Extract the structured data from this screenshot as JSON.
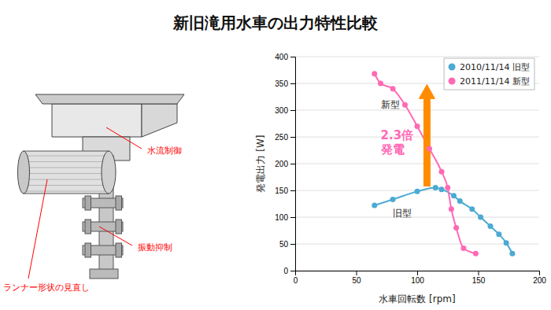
{
  "chart_data": {
    "type": "scatter",
    "title": "新旧滝用水車の出力特性比較",
    "xlabel": "水車回転数 [rpm]",
    "ylabel": "発電出力 [W]",
    "xlim": [
      0,
      200
    ],
    "ylim": [
      0,
      400
    ],
    "xticks": [
      0,
      50,
      100,
      150,
      200
    ],
    "yticks": [
      0,
      50,
      100,
      150,
      200,
      250,
      300,
      350,
      400
    ],
    "grid": "y",
    "legend": "upper right",
    "series": [
      {
        "name": "2010/11/14 旧型",
        "color": "#4BAAD3",
        "marker": "circle",
        "line_style": "solid",
        "x": [
          65,
          80,
          100,
          115,
          120,
          130,
          135,
          145,
          152,
          160,
          167,
          173,
          178
        ],
        "values": [
          122,
          133,
          148,
          155,
          152,
          140,
          130,
          115,
          100,
          83,
          68,
          52,
          32
        ]
      },
      {
        "name": "2011/11/14 新型",
        "color": "#FF69B4",
        "marker": "circle",
        "line_style": "solid",
        "x": [
          65,
          70,
          80,
          90,
          100,
          110,
          120,
          125,
          128,
          132,
          138,
          148
        ],
        "values": [
          368,
          350,
          340,
          310,
          270,
          228,
          185,
          155,
          115,
          80,
          42,
          32
        ]
      }
    ],
    "annotations": [
      {
        "text": "新型",
        "x": 70,
        "y": 310
      },
      {
        "text": "旧型",
        "x": 80,
        "y": 108
      },
      {
        "text": "2.3倍\n発電",
        "x": 70,
        "y": 240,
        "color": "#FF69B4"
      }
    ],
    "arrow": {
      "x": 108,
      "from": 158,
      "to": 348,
      "color": "#FF8C00"
    },
    "diagram_labels": [
      {
        "text": "水流制御",
        "color": "red"
      },
      {
        "text": "振動抑制",
        "color": "red"
      },
      {
        "text": "ランナー形状の見直し",
        "color": "red"
      }
    ]
  }
}
